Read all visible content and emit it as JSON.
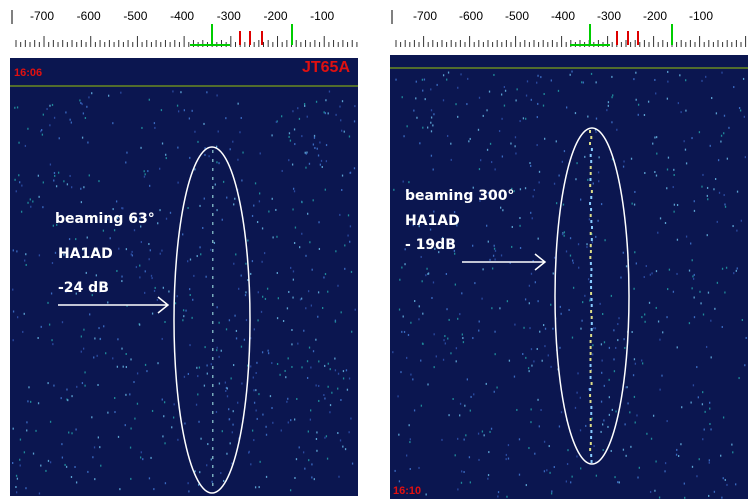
{
  "panels": [
    {
      "scale_labels": [
        "-700",
        "-600",
        "-500",
        "-400",
        "-300",
        "-200",
        "-100"
      ],
      "time": "16:06",
      "mode": "JT65A",
      "annotation": [
        "beaming 63°",
        "HA1AD",
        "-24 dB"
      ]
    },
    {
      "scale_labels": [
        "-700",
        "-600",
        "-500",
        "-400",
        "-300",
        "-200",
        "-100"
      ],
      "time": "16:10",
      "annotation": [
        "beaming 300°",
        "HA1AD",
        "- 19dB"
      ]
    }
  ]
}
